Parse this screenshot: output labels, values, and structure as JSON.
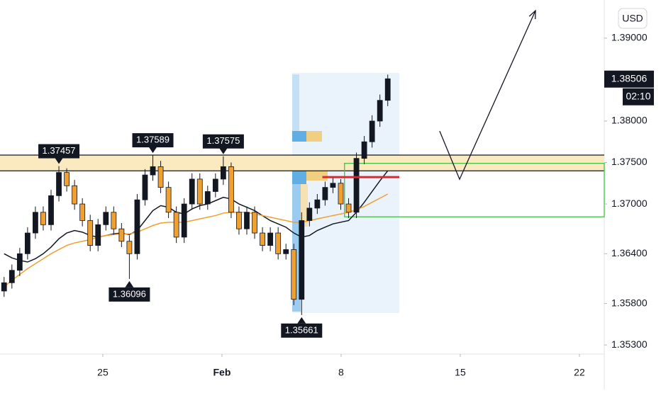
{
  "chart_data": {
    "type": "candlestick",
    "currency": "USD",
    "countdown": "02:10",
    "last_price": {
      "value": 1.38506,
      "label": "1.38506"
    },
    "up_color": "#131722",
    "down_color": "#f0a030",
    "xlim": [
      18.96,
      54.46
    ],
    "ylim": [
      1.3519,
      1.3946
    ],
    "xticks": [
      {
        "value": 25,
        "label": "25"
      },
      {
        "value": 32,
        "label": "Feb"
      },
      {
        "value": 39,
        "label": "8"
      },
      {
        "value": 46,
        "label": "15"
      },
      {
        "value": 53,
        "label": "22"
      }
    ],
    "yticks": [
      {
        "value": 1.39,
        "label": "1.39000"
      },
      {
        "value": 1.38,
        "label": "1.38000"
      },
      {
        "value": 1.375,
        "label": "1.37500"
      },
      {
        "value": 1.37,
        "label": "1.37000"
      },
      {
        "value": 1.364,
        "label": "1.36400"
      },
      {
        "value": 1.358,
        "label": "1.35800"
      },
      {
        "value": 1.353,
        "label": "1.35300"
      }
    ],
    "x": [
      19.2,
      19.66,
      20.12,
      20.58,
      21.04,
      21.5,
      21.96,
      22.42,
      22.88,
      23.34,
      23.8,
      24.26,
      24.72,
      25.18,
      25.64,
      26.1,
      26.56,
      27.02,
      27.48,
      27.94,
      28.4,
      28.86,
      29.32,
      29.78,
      30.24,
      30.7,
      31.16,
      31.62,
      32.08,
      32.54,
      33,
      33.46,
      33.92,
      34.38,
      34.84,
      35.3,
      35.76,
      36.22,
      36.68,
      37.14,
      37.6,
      38.06,
      38.52,
      38.98,
      39.44,
      39.9,
      40.36,
      40.82,
      41.28,
      41.74
    ],
    "open": [
      1.3595,
      1.3605,
      1.362,
      1.364,
      1.3665,
      1.369,
      1.3675,
      1.371,
      1.3738,
      1.3722,
      1.37,
      1.368,
      1.365,
      1.3675,
      1.369,
      1.367,
      1.3655,
      1.364,
      1.3705,
      1.3735,
      1.3745,
      1.372,
      1.369,
      1.366,
      1.37,
      1.373,
      1.37,
      1.3715,
      1.373,
      1.3745,
      1.369,
      1.367,
      1.369,
      1.3665,
      1.365,
      1.3665,
      1.364,
      1.3645,
      1.3585,
      1.368,
      1.3695,
      1.3705,
      1.372,
      1.3725,
      1.37,
      1.369,
      1.3755,
      1.3775,
      1.38,
      1.3825
    ],
    "high": [
      1.3612,
      1.3627,
      1.3647,
      1.3672,
      1.3697,
      1.3697,
      1.3717,
      1.37457,
      1.3743,
      1.3729,
      1.3707,
      1.3687,
      1.3682,
      1.3697,
      1.3697,
      1.3677,
      1.3662,
      1.3712,
      1.3742,
      1.37589,
      1.3752,
      1.3727,
      1.3697,
      1.3707,
      1.3737,
      1.3737,
      1.3722,
      1.3737,
      1.37575,
      1.375,
      1.3697,
      1.3697,
      1.3697,
      1.3672,
      1.3672,
      1.3672,
      1.3652,
      1.3652,
      1.369,
      1.3702,
      1.3712,
      1.3727,
      1.3732,
      1.373,
      1.3707,
      1.3762,
      1.3782,
      1.3807,
      1.3832,
      1.3856
    ],
    "low": [
      1.3588,
      1.3598,
      1.3613,
      1.3633,
      1.3658,
      1.3668,
      1.3668,
      1.3703,
      1.3715,
      1.3693,
      1.3673,
      1.3643,
      1.3643,
      1.3668,
      1.3663,
      1.3648,
      1.36096,
      1.3633,
      1.3698,
      1.3728,
      1.3713,
      1.3683,
      1.3653,
      1.3653,
      1.3693,
      1.3693,
      1.3693,
      1.3708,
      1.3723,
      1.3683,
      1.3663,
      1.3663,
      1.3658,
      1.3643,
      1.3643,
      1.3633,
      1.3633,
      1.3578,
      1.35661,
      1.3673,
      1.3688,
      1.3698,
      1.3713,
      1.3693,
      1.3683,
      1.3683,
      1.3748,
      1.3768,
      1.3793,
      1.3818
    ],
    "close": [
      1.3605,
      1.362,
      1.364,
      1.3665,
      1.369,
      1.3675,
      1.371,
      1.3738,
      1.3722,
      1.37,
      1.368,
      1.365,
      1.3675,
      1.369,
      1.367,
      1.3655,
      1.364,
      1.3705,
      1.3735,
      1.3745,
      1.372,
      1.369,
      1.366,
      1.37,
      1.373,
      1.37,
      1.3715,
      1.373,
      1.3745,
      1.369,
      1.367,
      1.369,
      1.3665,
      1.365,
      1.3665,
      1.364,
      1.3645,
      1.3585,
      1.368,
      1.3695,
      1.3705,
      1.372,
      1.3725,
      1.37,
      1.369,
      1.3755,
      1.3775,
      1.38,
      1.3825,
      1.3851
    ],
    "series": [
      {
        "color": "#131722",
        "values": [
          1.364,
          1.3635,
          1.3632,
          1.363,
          1.3634,
          1.364,
          1.3648,
          1.3658,
          1.3665,
          1.3668,
          1.3666,
          1.3662,
          1.366,
          1.3662,
          1.3664,
          1.3665,
          1.3663,
          1.3668,
          1.368,
          1.3692,
          1.3698,
          1.3696,
          1.369,
          1.3688,
          1.3694,
          1.3698,
          1.37,
          1.3704,
          1.3708,
          1.3706,
          1.37,
          1.3696,
          1.3692,
          1.3686,
          1.368,
          1.3676,
          1.3672,
          1.3665,
          1.366,
          1.3662,
          1.3668,
          1.3672,
          1.3676,
          1.3678,
          1.368,
          1.369,
          1.3702,
          1.3715,
          1.3728,
          1.374
        ]
      },
      {
        "color": "#f0a030",
        "values": [
          1.36,
          1.3608,
          1.3615,
          1.3622,
          1.3628,
          1.3634,
          1.364,
          1.3645,
          1.365,
          1.3653,
          1.3655,
          1.3657,
          1.366,
          1.3662,
          1.3663,
          1.3664,
          1.3664,
          1.3666,
          1.367,
          1.3674,
          1.3677,
          1.3678,
          1.3678,
          1.3678,
          1.368,
          1.3682,
          1.3684,
          1.3686,
          1.3689,
          1.369,
          1.369,
          1.369,
          1.3688,
          1.3686,
          1.3684,
          1.3682,
          1.368,
          1.3678,
          1.3678,
          1.368,
          1.3682,
          1.3684,
          1.3686,
          1.3688,
          1.369,
          1.3693,
          1.3697,
          1.3702,
          1.3707,
          1.3712
        ]
      }
    ],
    "annotations": [
      {
        "x": 22.42,
        "value": 1.37457,
        "label": "1.37457",
        "position": "above"
      },
      {
        "x": 27.94,
        "value": 1.37589,
        "label": "1.37589",
        "position": "above"
      },
      {
        "x": 32.08,
        "value": 1.37575,
        "label": "1.37575",
        "position": "above"
      },
      {
        "x": 26.56,
        "value": 1.36096,
        "label": "1.36096",
        "position": "below"
      },
      {
        "x": 36.68,
        "value": 1.35661,
        "label": "1.35661",
        "position": "below"
      }
    ],
    "zone": {
      "from": 1.374,
      "to": 1.3759,
      "color": "#fbe9bf"
    },
    "green_box": {
      "x": 39.2,
      "from": 1.36845,
      "to": 1.3749,
      "color": "#3fc23f"
    },
    "red_line": {
      "x": [
        37.9,
        42.42
      ],
      "value": 1.37324,
      "color": "#e0262b"
    },
    "projection": {
      "x": [
        44.79,
        45.96,
        50.42
      ],
      "values": [
        1.37879,
        1.37298,
        1.39332
      ]
    }
  }
}
